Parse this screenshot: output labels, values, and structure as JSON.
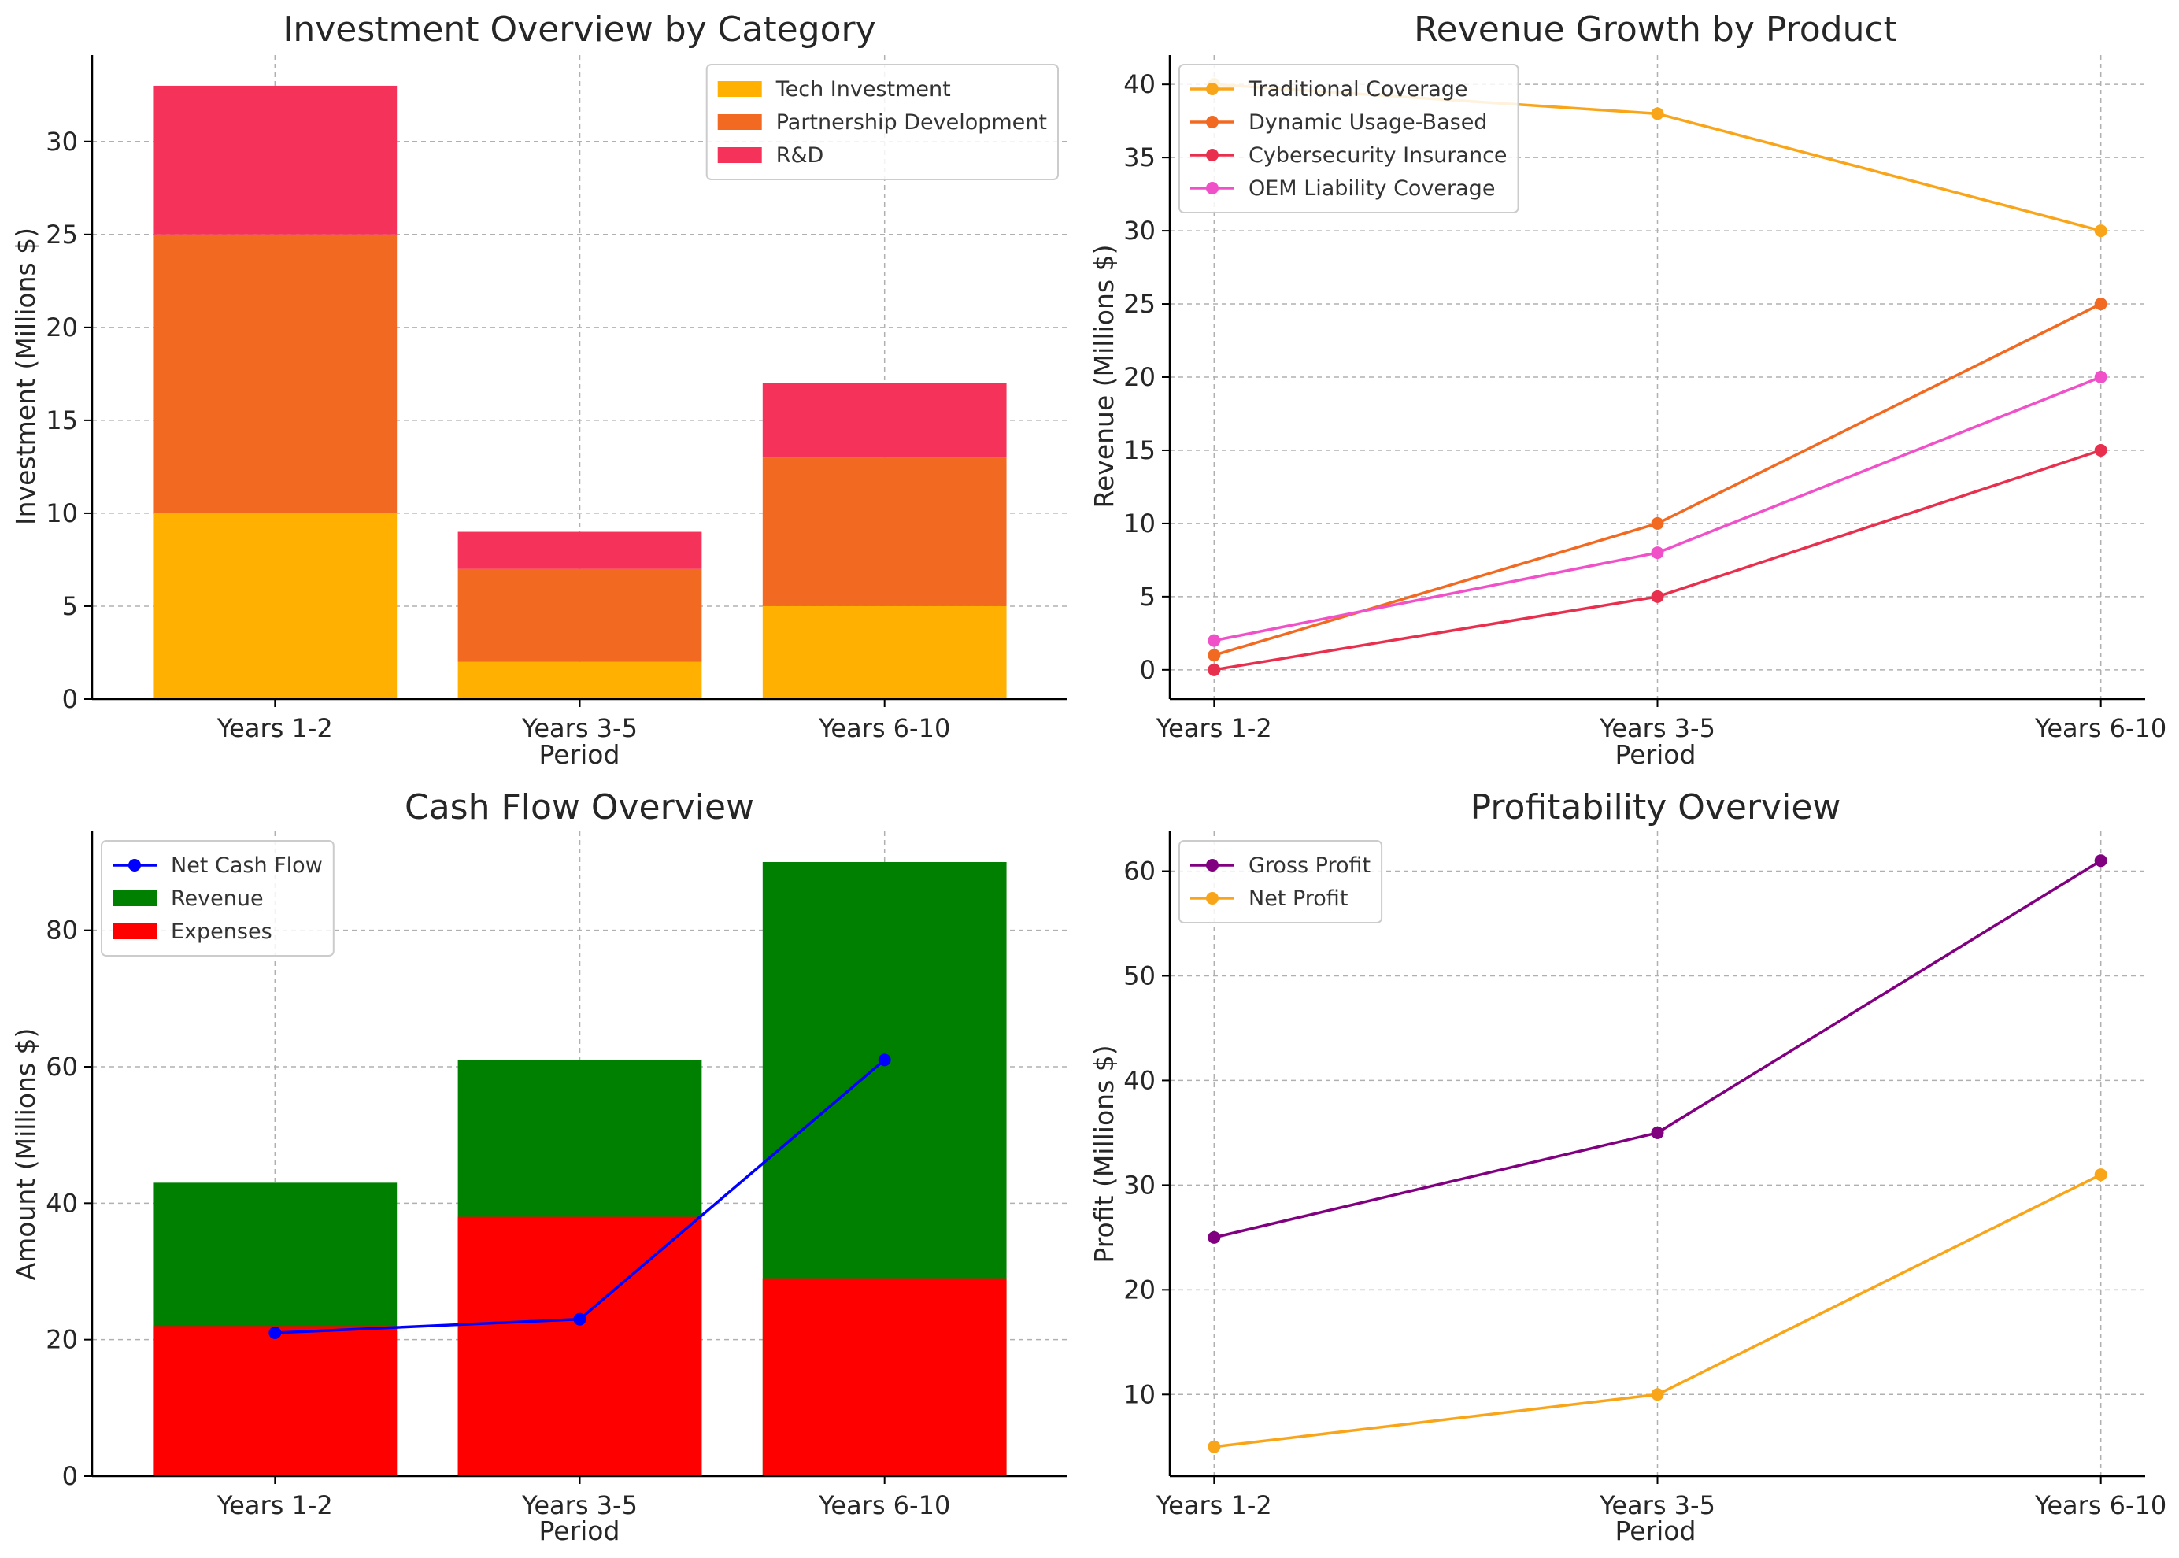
{
  "chart_data": [
    {
      "type": "bar",
      "stacked": true,
      "title": "Investment Overview by Category",
      "xlabel": "Period",
      "ylabel": "Investment (Millions $)",
      "categories": [
        "Years 1-2",
        "Years 3-5",
        "Years 6-10"
      ],
      "ylim": [
        0,
        34.65
      ],
      "yticks": [
        0,
        5,
        10,
        15,
        20,
        25,
        30
      ],
      "grid": true,
      "legend": "upper-right",
      "series": [
        {
          "name": "Tech Investment",
          "values": [
            10,
            2,
            5
          ],
          "color": "#ffb000"
        },
        {
          "name": "Partnership Development",
          "values": [
            15,
            5,
            8
          ],
          "color": "#f26a21"
        },
        {
          "name": "R&D",
          "values": [
            8,
            2,
            4
          ],
          "color": "#f5325a"
        }
      ]
    },
    {
      "type": "line",
      "title": "Revenue Growth by Product",
      "xlabel": "Period",
      "ylabel": "Revenue (Millions $)",
      "categories": [
        "Years 1-2",
        "Years 3-5",
        "Years 6-10"
      ],
      "ylim": [
        -2,
        42
      ],
      "yticks": [
        0,
        5,
        10,
        15,
        20,
        25,
        30,
        35,
        40
      ],
      "grid": true,
      "legend": "upper-left",
      "series": [
        {
          "name": "Traditional Coverage",
          "values": [
            40,
            38,
            30
          ],
          "color": "#f9a51a"
        },
        {
          "name": "Dynamic Usage-Based",
          "values": [
            1,
            10,
            25
          ],
          "color": "#f26a21"
        },
        {
          "name": "Cybersecurity Insurance",
          "values": [
            0,
            5,
            15
          ],
          "color": "#e8304e"
        },
        {
          "name": "OEM Liability Coverage",
          "values": [
            2,
            8,
            20
          ],
          "color": "#f050c8"
        }
      ]
    },
    {
      "type": "bar",
      "overlay_line": true,
      "title": "Cash Flow Overview",
      "xlabel": "Period",
      "ylabel": "Amount (Millions $)",
      "categories": [
        "Years 1-2",
        "Years 3-5",
        "Years 6-10"
      ],
      "ylim": [
        0,
        94.5
      ],
      "yticks": [
        0,
        20,
        40,
        60,
        80
      ],
      "grid": true,
      "legend": "upper-left",
      "bars": [
        {
          "name": "Revenue",
          "values": [
            43,
            61,
            90
          ],
          "color": "#008000"
        },
        {
          "name": "Expenses",
          "values": [
            22,
            38,
            29
          ],
          "color": "#ff0000"
        }
      ],
      "line": {
        "name": "Net Cash Flow",
        "values": [
          21,
          23,
          61
        ],
        "color": "#0000ff"
      }
    },
    {
      "type": "line",
      "title": "Profitability Overview",
      "xlabel": "Period",
      "ylabel": "Profit (Millions $)",
      "categories": [
        "Years 1-2",
        "Years 3-5",
        "Years 6-10"
      ],
      "ylim": [
        2.2,
        63.8
      ],
      "yticks": [
        10,
        20,
        30,
        40,
        50,
        60
      ],
      "grid": true,
      "legend": "upper-left",
      "series": [
        {
          "name": "Gross Profit",
          "values": [
            25,
            35,
            61
          ],
          "color": "#800080"
        },
        {
          "name": "Net Profit",
          "values": [
            5,
            10,
            31
          ],
          "color": "#f9a51a"
        }
      ]
    }
  ]
}
